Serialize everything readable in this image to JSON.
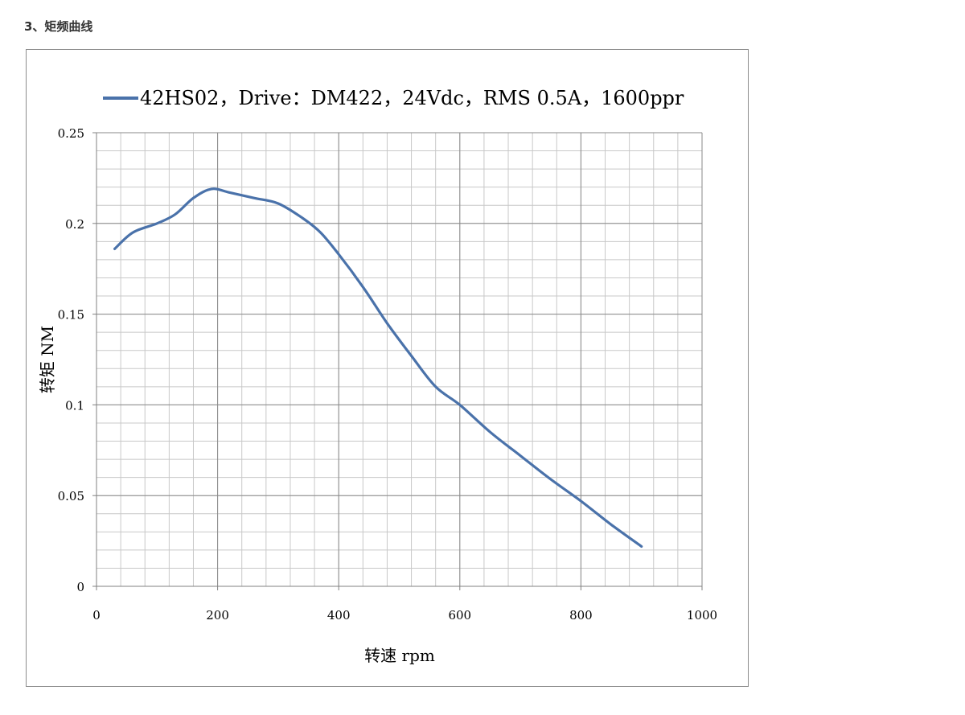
{
  "heading": "3、矩频曲线",
  "chart_data": {
    "type": "line",
    "title": "",
    "xlabel": "转速 rpm",
    "ylabel": "转矩 NM",
    "xlim": [
      0,
      1000
    ],
    "ylim": [
      0,
      0.25
    ],
    "x_ticks": [
      "0",
      "200",
      "400",
      "600",
      "800",
      "1000"
    ],
    "y_ticks": [
      "0",
      "0.05",
      "0.1",
      "0.15",
      "0.2",
      "0.25"
    ],
    "grid": true,
    "legend_position": "top",
    "series": [
      {
        "name": "42HS02，Drive：DM422，24Vdc，RMS 0.5A，1600ppr",
        "color": "#4a72aa",
        "x": [
          30,
          60,
          100,
          130,
          160,
          190,
          220,
          260,
          300,
          340,
          370,
          400,
          440,
          480,
          520,
          560,
          600,
          650,
          700,
          750,
          800,
          850,
          900
        ],
        "y": [
          0.186,
          0.195,
          0.2,
          0.205,
          0.214,
          0.219,
          0.217,
          0.214,
          0.211,
          0.203,
          0.195,
          0.183,
          0.165,
          0.145,
          0.127,
          0.11,
          0.1,
          0.085,
          0.072,
          0.059,
          0.047,
          0.034,
          0.022
        ]
      }
    ]
  }
}
